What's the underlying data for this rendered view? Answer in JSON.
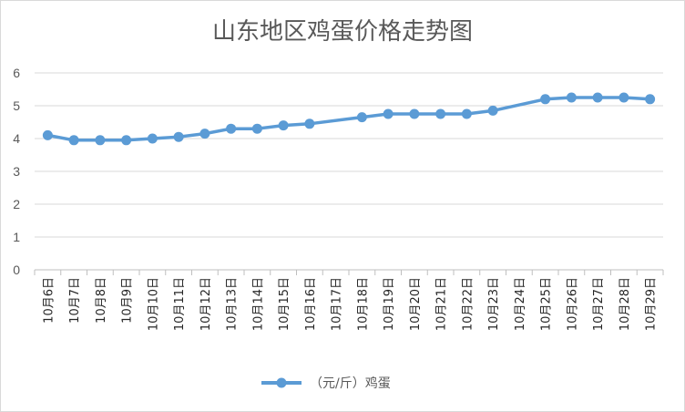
{
  "chart_data": {
    "type": "line",
    "title": "山东地区鸡蛋价格走势图",
    "xlabel": "",
    "ylabel": "",
    "ylim": [
      0,
      6
    ],
    "yticks": [
      0,
      1,
      2,
      3,
      4,
      5,
      6
    ],
    "grid": true,
    "legend_position": "bottom",
    "categories": [
      "10月6日",
      "10月7日",
      "10月8日",
      "10月9日",
      "10月10日",
      "10月11日",
      "10月12日",
      "10月13日",
      "10月14日",
      "10月15日",
      "10月16日",
      "10月17日",
      "10月18日",
      "10月19日",
      "10月20日",
      "10月21日",
      "10月22日",
      "10月23日",
      "10月24日",
      "10月25日",
      "10月26日",
      "10月27日",
      "10月28日",
      "10月29日"
    ],
    "series": [
      {
        "name": "（元/斤）鸡蛋",
        "color": "#5b9bd5",
        "values": [
          4.1,
          3.95,
          3.95,
          3.95,
          4.0,
          4.05,
          4.15,
          4.3,
          4.3,
          4.4,
          4.45,
          null,
          4.65,
          4.75,
          4.75,
          4.75,
          4.75,
          4.85,
          null,
          5.2,
          5.25,
          5.25,
          5.25,
          5.2
        ]
      }
    ]
  }
}
